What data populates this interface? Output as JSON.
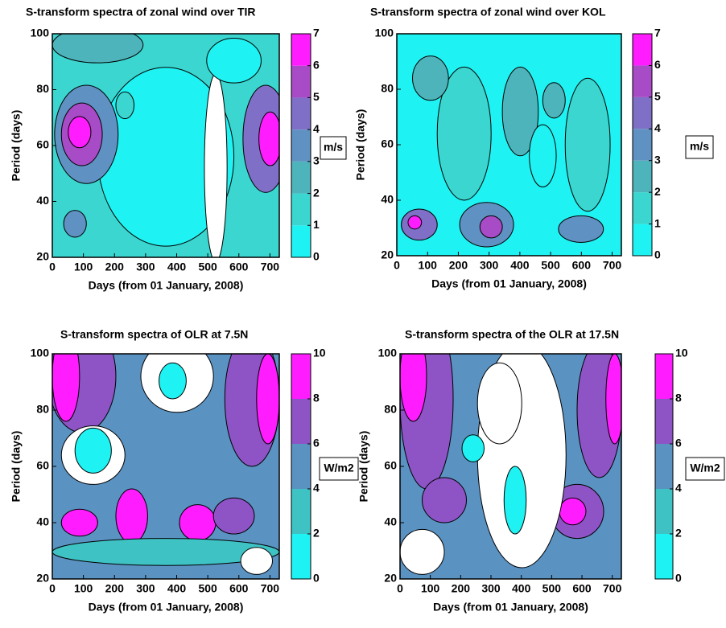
{
  "chart_data": [
    {
      "type": "contour",
      "title": "S-transform spectra of zonal wind over TIR",
      "x_label": "Days (from  01 January, 2008)",
      "y_label": "Period (days)",
      "xlim": [
        0,
        730
      ],
      "xticks": [
        0,
        100,
        200,
        300,
        400,
        500,
        600,
        700
      ],
      "ylim": [
        20,
        100
      ],
      "yticks": [
        20,
        40,
        60,
        80,
        100
      ],
      "colorbar_label": "m/s",
      "clim": [
        0,
        7
      ],
      "cticks": [
        0,
        1,
        2,
        3,
        4,
        5,
        6,
        7
      ],
      "colors": [
        "#1ff2f2",
        "#3ad6cf",
        "#4eb4bc",
        "#5f92c2",
        "#7f6fc6",
        "#a84bc6",
        "#ff1cff"
      ]
    },
    {
      "type": "contour",
      "title": "S-transform spectra of zonal wind over KOL",
      "x_label": "Days (from  01 January, 2008)",
      "y_label": "Period (days)",
      "xlim": [
        0,
        730
      ],
      "xticks": [
        0,
        100,
        200,
        300,
        400,
        500,
        600,
        700
      ],
      "ylim": [
        20,
        100
      ],
      "yticks": [
        20,
        40,
        60,
        80,
        100
      ],
      "colorbar_label": "m/s",
      "clim": [
        0,
        7
      ],
      "cticks": [
        0,
        1,
        2,
        3,
        4,
        5,
        6,
        7
      ],
      "colors": [
        "#1ff2f2",
        "#3ad6cf",
        "#4eb4bc",
        "#5f92c2",
        "#7f6fc6",
        "#a84bc6",
        "#ff1cff"
      ]
    },
    {
      "type": "contour",
      "title": "S-transform spectra of OLR at 7.5N",
      "x_label": "Days (from  01 January, 2008)",
      "y_label": "Period (days)",
      "xlim": [
        0,
        730
      ],
      "xticks": [
        0,
        100,
        200,
        300,
        400,
        500,
        600,
        700
      ],
      "ylim": [
        20,
        100
      ],
      "yticks": [
        20,
        40,
        60,
        80,
        100
      ],
      "colorbar_label": "W/m2",
      "clim": [
        0,
        10
      ],
      "cticks": [
        0,
        2,
        4,
        6,
        8,
        10
      ],
      "colors": [
        "#1ff2f2",
        "#3fc2c4",
        "#5a92c2",
        "#8e54c6",
        "#ff1cff"
      ]
    },
    {
      "type": "contour",
      "title": "S-transform spectra of the OLR at 17.5N",
      "x_label": "Days (from  01 January, 2008)",
      "y_label": "Period (days)",
      "xlim": [
        0,
        730
      ],
      "xticks": [
        0,
        100,
        200,
        300,
        400,
        500,
        600,
        700
      ],
      "ylim": [
        20,
        100
      ],
      "yticks": [
        20,
        40,
        60,
        80,
        100
      ],
      "colorbar_label": "W/m2",
      "clim": [
        0,
        10
      ],
      "cticks": [
        0,
        2,
        4,
        6,
        8,
        10
      ],
      "colors": [
        "#1ff2f2",
        "#3fc2c4",
        "#5a92c2",
        "#8e54c6",
        "#ff1cff"
      ]
    }
  ]
}
